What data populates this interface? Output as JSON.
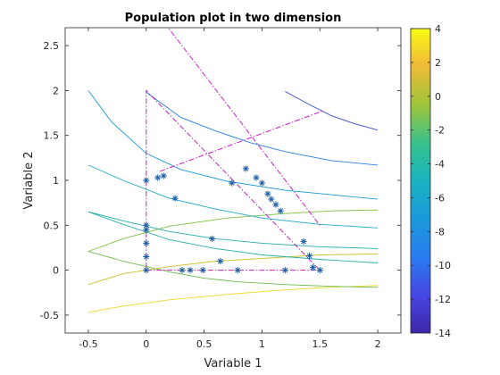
{
  "chart_data": {
    "type": "scatter",
    "title": "Population plot in two dimension",
    "xlabel": "Variable  1",
    "ylabel": "Variable  2",
    "xlim": [
      -0.7,
      2.2
    ],
    "ylim": [
      -0.7,
      2.7
    ],
    "xticks": [
      -0.5,
      0,
      0.5,
      1,
      1.5,
      2
    ],
    "xtick_labels": [
      "-0.5",
      "0",
      "0.5",
      "1",
      "1.5",
      "2"
    ],
    "yticks": [
      -0.5,
      0,
      0.5,
      1,
      1.5,
      2,
      2.5
    ],
    "ytick_labels": [
      "-0.5",
      "0",
      "0.5",
      "1",
      "1.5",
      "2",
      "2.5"
    ],
    "grid": false,
    "colorbar": {
      "range": [
        -14,
        4
      ],
      "ticks": [
        -14,
        -12,
        -10,
        -8,
        -6,
        -4,
        -2,
        0,
        2,
        4
      ],
      "tick_labels": [
        "-14",
        "-12",
        "-10",
        "-8",
        "-6",
        "-4",
        "-2",
        "0",
        "2",
        "4"
      ],
      "colormap": "parula"
    },
    "contours": [
      {
        "level": 2.0,
        "color": "#f2d626",
        "points": [
          [
            -0.5,
            -0.47
          ],
          [
            -0.2,
            -0.4
          ],
          [
            0.2,
            -0.33
          ],
          [
            0.7,
            -0.27
          ],
          [
            1.2,
            -0.22
          ],
          [
            1.6,
            -0.19
          ],
          [
            2.0,
            -0.17
          ]
        ]
      },
      {
        "level": 0.0,
        "color": "#c9c12a",
        "points": [
          [
            -0.5,
            -0.16
          ],
          [
            -0.2,
            -0.04
          ],
          [
            0.2,
            0.04
          ],
          [
            0.6,
            0.1
          ],
          [
            1.0,
            0.13
          ],
          [
            1.5,
            0.17
          ],
          [
            2.0,
            0.18
          ]
        ]
      },
      {
        "level": -2.0,
        "color": "#6cba4a",
        "points": [
          [
            -0.5,
            0.21
          ],
          [
            -0.2,
            0.1
          ],
          [
            0.2,
            -0.02
          ],
          [
            0.5,
            -0.09
          ],
          [
            0.8,
            -0.13
          ],
          [
            1.2,
            -0.16
          ],
          [
            1.6,
            -0.18
          ],
          [
            2.0,
            -0.19
          ]
        ]
      },
      {
        "level": -2.5,
        "color": "#7cbf45",
        "points": [
          [
            -0.5,
            0.21
          ],
          [
            -0.2,
            0.35
          ],
          [
            0.2,
            0.49
          ],
          [
            0.7,
            0.58
          ],
          [
            1.2,
            0.63
          ],
          [
            1.6,
            0.66
          ],
          [
            2.0,
            0.67
          ]
        ]
      },
      {
        "level": -4.0,
        "color": "#2bb1a6",
        "points": [
          [
            -0.5,
            0.65
          ],
          [
            -0.2,
            0.51
          ],
          [
            0.2,
            0.34
          ],
          [
            0.6,
            0.24
          ],
          [
            1.0,
            0.17
          ],
          [
            1.5,
            0.12
          ],
          [
            2.0,
            0.08
          ]
        ]
      },
      {
        "level": -4.2,
        "color": "#25acae",
        "points": [
          [
            -0.5,
            0.65
          ],
          [
            -0.2,
            0.55
          ],
          [
            0.2,
            0.43
          ],
          [
            0.6,
            0.35
          ],
          [
            1.0,
            0.3
          ],
          [
            1.5,
            0.26
          ],
          [
            2.0,
            0.24
          ]
        ]
      },
      {
        "level": -6.0,
        "color": "#1fa6c4",
        "points": [
          [
            -0.5,
            1.17
          ],
          [
            -0.2,
            1.0
          ],
          [
            0.2,
            0.8
          ],
          [
            0.6,
            0.68
          ],
          [
            1.0,
            0.58
          ],
          [
            1.5,
            0.51
          ],
          [
            2.0,
            0.47
          ]
        ]
      },
      {
        "level": -8.0,
        "color": "#1b97d8",
        "points": [
          [
            -0.5,
            2.0
          ],
          [
            -0.3,
            1.65
          ],
          [
            0.0,
            1.3
          ],
          [
            0.3,
            1.12
          ],
          [
            0.7,
            0.99
          ],
          [
            1.2,
            0.89
          ],
          [
            1.6,
            0.84
          ],
          [
            2.0,
            0.79
          ]
        ]
      },
      {
        "level": -10.0,
        "color": "#2b7fe5",
        "points": [
          [
            0.0,
            1.98
          ],
          [
            0.3,
            1.7
          ],
          [
            0.6,
            1.55
          ],
          [
            0.9,
            1.42
          ],
          [
            1.2,
            1.32
          ],
          [
            1.6,
            1.22
          ],
          [
            2.0,
            1.17
          ]
        ]
      },
      {
        "level": -12.0,
        "color": "#3a4ad0",
        "points": [
          [
            1.2,
            1.99
          ],
          [
            1.4,
            1.85
          ],
          [
            1.6,
            1.72
          ],
          [
            1.8,
            1.63
          ],
          [
            2.0,
            1.56
          ]
        ]
      }
    ],
    "series": [
      {
        "marker": "asterisk",
        "color": "#1f5fa5",
        "points": [
          [
            0.0,
            0.0
          ],
          [
            0.0,
            0.15
          ],
          [
            0.0,
            0.3
          ],
          [
            0.0,
            0.45
          ],
          [
            0.0,
            0.5
          ],
          [
            0.0,
            1.0
          ],
          [
            0.1,
            1.03
          ],
          [
            0.15,
            1.05
          ],
          [
            0.25,
            0.8
          ],
          [
            0.31,
            0.0
          ],
          [
            0.38,
            0.0
          ],
          [
            0.49,
            0.0
          ],
          [
            0.57,
            0.35
          ],
          [
            0.64,
            0.1
          ],
          [
            0.74,
            0.97
          ],
          [
            0.79,
            0.0
          ],
          [
            0.86,
            1.13
          ],
          [
            0.95,
            1.03
          ],
          [
            1.0,
            0.97
          ],
          [
            1.05,
            0.85
          ],
          [
            1.08,
            0.79
          ],
          [
            1.12,
            0.73
          ],
          [
            1.16,
            0.66
          ],
          [
            1.2,
            0.0
          ],
          [
            1.36,
            0.32
          ],
          [
            1.41,
            0.16
          ],
          [
            1.44,
            0.03
          ],
          [
            1.5,
            0.0
          ]
        ]
      }
    ],
    "lines": [
      {
        "style": "dashdot",
        "color": "#c81ec8",
        "points": [
          [
            0.0,
            0.0
          ],
          [
            1.5,
            0.0
          ],
          [
            0.0,
            2.0
          ],
          [
            0.0,
            0.0
          ]
        ]
      },
      {
        "style": "dashdot",
        "color": "#c81ec8",
        "points": [
          [
            0.16,
            2.75
          ],
          [
            1.5,
            0.5
          ]
        ]
      },
      {
        "style": "dashdot",
        "color": "#c81ec8",
        "points": [
          [
            0.12,
            1.1
          ],
          [
            1.52,
            1.77
          ]
        ]
      }
    ]
  }
}
